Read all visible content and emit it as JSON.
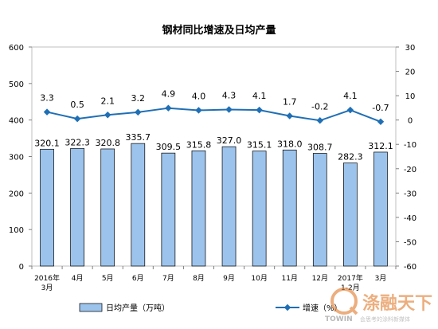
{
  "chart_data": {
    "type": "bar",
    "title": "钢材同比增速及日均产量",
    "categories": [
      "2016年3月",
      "4月",
      "5月",
      "6月",
      "7月",
      "8月",
      "9月",
      "10月",
      "11月",
      "12月",
      "2017年1-2月",
      "3月"
    ],
    "category_lines": [
      [
        "2016年",
        "3月"
      ],
      [
        "4月"
      ],
      [
        "5月"
      ],
      [
        "6月"
      ],
      [
        "7月"
      ],
      [
        "8月"
      ],
      [
        "9月"
      ],
      [
        "10月"
      ],
      [
        "11月"
      ],
      [
        "12月"
      ],
      [
        "2017年",
        "1-2月"
      ],
      [
        "3月"
      ]
    ],
    "series": [
      {
        "name": "日均产量（万吨）",
        "type": "bar",
        "axis": "left",
        "color": "#9cc3ec",
        "values": [
          320.1,
          322.3,
          320.8,
          335.7,
          309.5,
          315.8,
          327.0,
          315.1,
          318.0,
          308.7,
          282.3,
          312.1
        ]
      },
      {
        "name": "增速（%）",
        "type": "line",
        "axis": "right",
        "color": "#1f6fb5",
        "values": [
          3.3,
          0.5,
          2.1,
          3.2,
          4.9,
          4.0,
          4.3,
          4.1,
          1.7,
          -0.2,
          4.1,
          -0.7
        ]
      }
    ],
    "y_left": {
      "range": [
        0,
        600
      ],
      "ticks": [
        0,
        100,
        200,
        300,
        400,
        500,
        600
      ]
    },
    "y_right": {
      "range": [
        -60,
        30
      ],
      "ticks": [
        -60,
        -50,
        -40,
        -30,
        -20,
        -10,
        0,
        10,
        20,
        30
      ]
    },
    "legend_position": "bottom"
  },
  "watermark": {
    "brand": "TOWIN",
    "name": "涤融天下",
    "slogan": "会思考的涂料新媒体"
  }
}
